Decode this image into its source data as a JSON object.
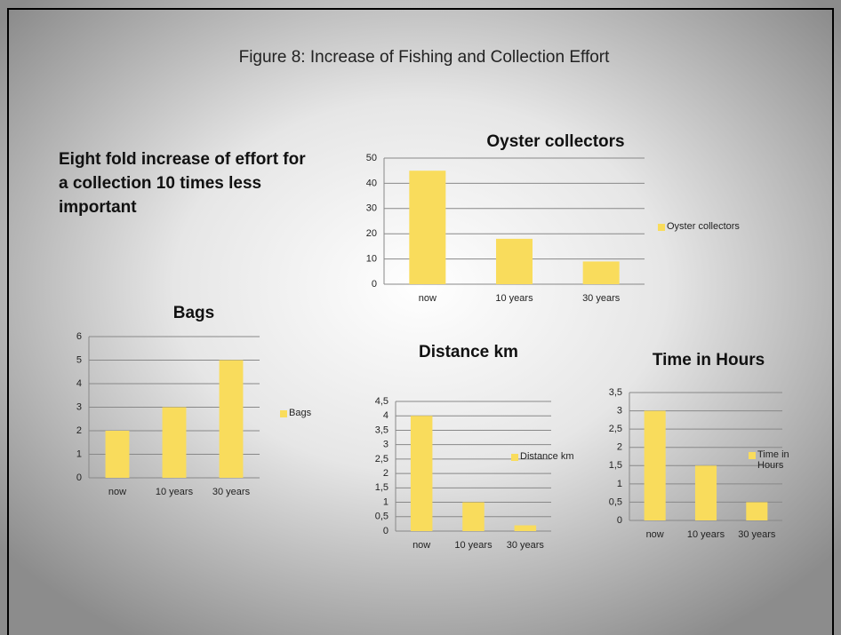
{
  "slide": {
    "title": "Figure 8: Increase of Fishing and Collection Effort",
    "note": "Eight fold increase of effort for a collection 10 times less important"
  },
  "chart_data": [
    {
      "type": "bar",
      "title": "Oyster collectors",
      "categories": [
        "now",
        "10 years",
        "30 years"
      ],
      "series": [
        {
          "name": "Oyster collectors",
          "color": "#f9dc5c",
          "values": [
            45,
            18,
            9
          ]
        }
      ],
      "ylim": [
        0,
        50
      ],
      "yticks": [
        0,
        10,
        20,
        30,
        40,
        50
      ],
      "grid": true,
      "legend": "right"
    },
    {
      "type": "bar",
      "title": "Bags",
      "categories": [
        "now",
        "10 years",
        "30 years"
      ],
      "series": [
        {
          "name": "Bags",
          "color": "#f9dc5c",
          "values": [
            2,
            3,
            5
          ]
        }
      ],
      "ylim": [
        0,
        6
      ],
      "yticks": [
        0,
        1,
        2,
        3,
        4,
        5,
        6
      ],
      "grid": true,
      "legend": "right"
    },
    {
      "type": "bar",
      "title": "Distance km",
      "categories": [
        "now",
        "10 years",
        "30 years"
      ],
      "series": [
        {
          "name": "Distance km",
          "color": "#f9dc5c",
          "values": [
            4,
            1,
            0.2
          ]
        }
      ],
      "ylim": [
        0,
        4.5
      ],
      "yticks": [
        0,
        {
          "value": 0.5,
          "label": "0,5"
        },
        1,
        {
          "value": 1.5,
          "label": "1,5"
        },
        2,
        {
          "value": 2.5,
          "label": "2,5"
        },
        3,
        {
          "value": 3.5,
          "label": "3,5"
        },
        4,
        {
          "value": 4.5,
          "label": "4,5"
        }
      ],
      "grid": true,
      "legend": "right"
    },
    {
      "type": "bar",
      "title": "Time in Hours",
      "categories": [
        "now",
        "10 years",
        "30 years"
      ],
      "series": [
        {
          "name": "Time in Hours",
          "color": "#f9dc5c",
          "values": [
            3,
            1.5,
            0.5
          ]
        }
      ],
      "ylim": [
        0,
        3.5
      ],
      "yticks": [
        0,
        {
          "value": 0.5,
          "label": "0,5"
        },
        1,
        {
          "value": 1.5,
          "label": "1,5"
        },
        2,
        {
          "value": 2.5,
          "label": "2,5"
        },
        3,
        {
          "value": 3.5,
          "label": "3,5"
        }
      ],
      "grid": true,
      "legend": "right"
    }
  ]
}
